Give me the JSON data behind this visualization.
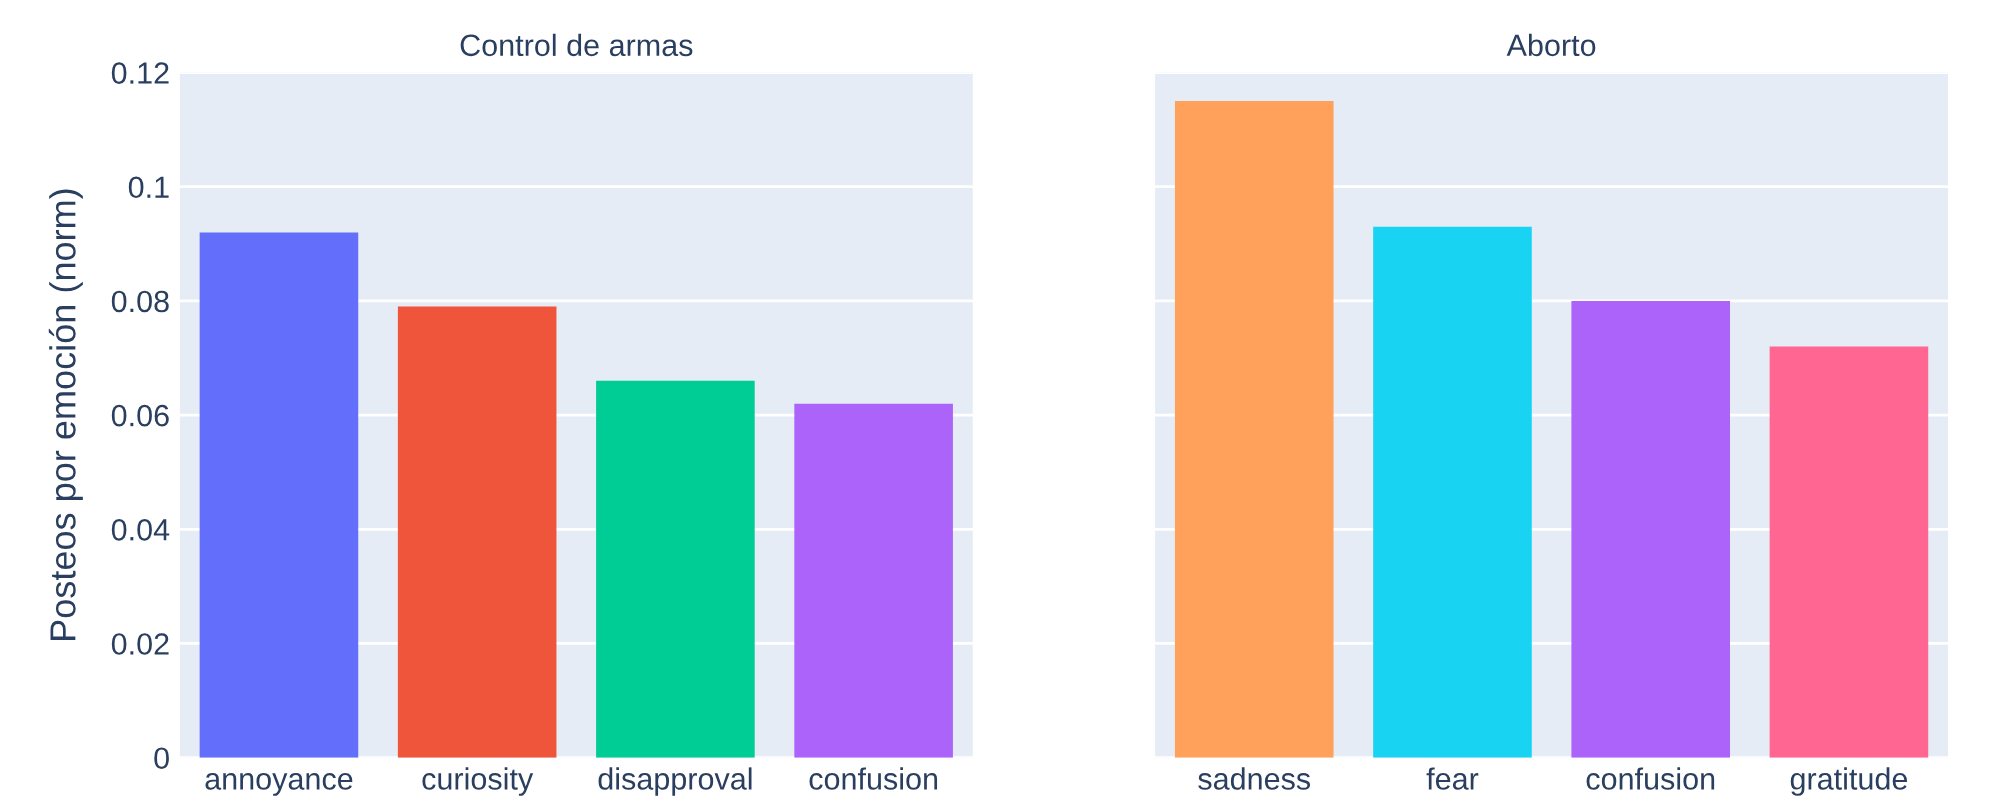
{
  "chart_data": [
    {
      "type": "bar",
      "title": "Control de armas",
      "ylabel": "Posteos por emoción (norm)",
      "categories": [
        "annoyance",
        "curiosity",
        "disapproval",
        "confusion"
      ],
      "values": [
        0.092,
        0.079,
        0.066,
        0.062
      ],
      "colors": [
        "#636efa",
        "#ef553b",
        "#00cc96",
        "#ab63fa"
      ],
      "ylim": [
        0,
        0.12
      ],
      "yticks": [
        0,
        0.02,
        0.04,
        0.06,
        0.08,
        0.1,
        0.12
      ],
      "grid": "y"
    },
    {
      "type": "bar",
      "title": "Aborto",
      "categories": [
        "sadness",
        "fear",
        "confusion",
        "gratitude"
      ],
      "values": [
        0.115,
        0.093,
        0.08,
        0.072
      ],
      "colors": [
        "#ffa15a",
        "#19d3f3",
        "#ab63fa",
        "#ff6692"
      ],
      "ylim": [
        0,
        0.12
      ],
      "yticks": [
        0,
        0.02,
        0.04,
        0.06,
        0.08,
        0.1,
        0.12
      ],
      "grid": "y",
      "tick_labels": "x"
    }
  ]
}
